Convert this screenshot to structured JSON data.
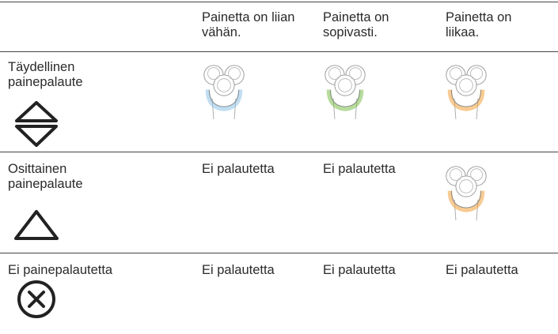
{
  "table": {
    "headers": [
      "Painetta on liian vähän.",
      "Painetta on sopivasti.",
      "Painetta on liikaa."
    ],
    "rows": [
      {
        "label": "Täydellinen painepalaute"
      },
      {
        "label": "Osittainen painepalaute",
        "cells": [
          "Ei palautetta",
          "Ei palautetta"
        ]
      },
      {
        "label": "Ei painepalautetta",
        "cells": [
          "Ei palautetta",
          "Ei palautetta",
          "Ei palautetta"
        ]
      }
    ]
  }
}
